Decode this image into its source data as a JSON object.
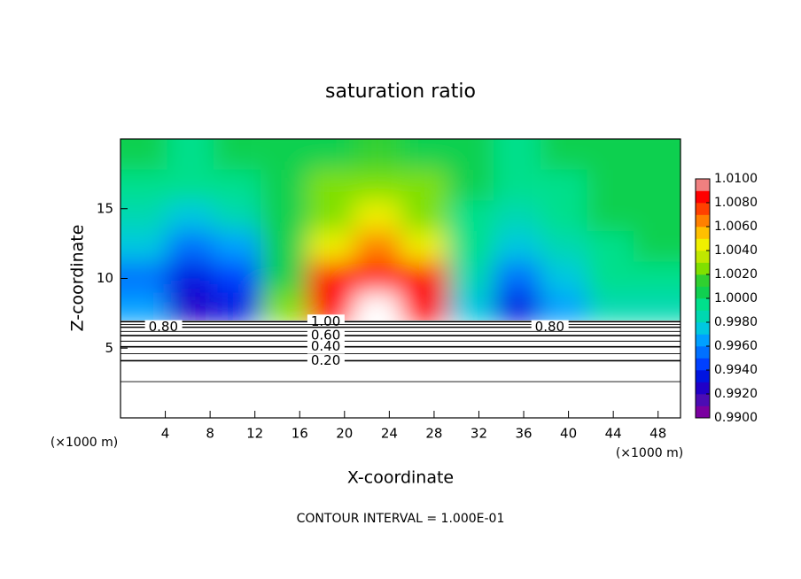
{
  "chart_data": {
    "type": "contour",
    "title": "saturation ratio",
    "x_label": "X-coordinate",
    "y_label": "Z-coordinate",
    "x_unit": "(×1000 m)",
    "y_unit": "(×1000 m)",
    "footnote": "CONTOUR INTERVAL = 1.000E-01",
    "xlim": [
      0,
      50
    ],
    "ylim": [
      0,
      20
    ],
    "xticks": [
      4,
      8,
      12,
      16,
      20,
      24,
      28,
      32,
      36,
      40,
      44,
      48
    ],
    "yticks": [
      5,
      10,
      15
    ],
    "field": {
      "x": [
        2.08,
        6.25,
        10.4,
        14.6,
        18.75,
        22.9,
        27.1,
        31.25,
        35.4,
        39.6,
        43.75,
        47.9
      ],
      "z": [
        18.9,
        16.7,
        14.5,
        12.3,
        10.1,
        7.9
      ],
      "values": [
        [
          1.0,
          0.9995,
          1.0,
          1.0005,
          1.001,
          1.0015,
          1.001,
          1.0,
          0.9995,
          1.0,
          1.0,
          1.0
        ],
        [
          0.999,
          0.999,
          0.9995,
          1.001,
          1.002,
          1.003,
          1.002,
          1.0,
          0.999,
          0.9995,
          1.0,
          1.0
        ],
        [
          0.998,
          0.997,
          0.998,
          1.001,
          1.003,
          1.004,
          1.003,
          0.9995,
          0.998,
          0.999,
          1.0,
          1.0
        ],
        [
          0.997,
          0.995,
          0.996,
          1.001,
          1.005,
          1.007,
          1.005,
          0.999,
          0.997,
          0.998,
          0.9995,
          1.0
        ],
        [
          0.995,
          0.993,
          0.994,
          1.001,
          1.008,
          1.009,
          1.008,
          0.998,
          0.995,
          0.997,
          0.999,
          0.999
        ],
        [
          0.996,
          0.992,
          0.993,
          1.002,
          1.009,
          1.012,
          1.009,
          0.997,
          0.993,
          0.996,
          0.998,
          0.998
        ]
      ]
    },
    "contours": [
      {
        "value": 1,
        "label": "1.00",
        "z": 6.9,
        "label_x": [
          17
        ]
      },
      {
        "value": 0.9,
        "z": 6.7
      },
      {
        "value": 0.8,
        "label": "0.80",
        "z": 6.5,
        "label_x": [
          2.5,
          37
        ]
      },
      {
        "value": 0.7,
        "z": 6.2
      },
      {
        "value": 0.6,
        "label": "0.60",
        "z": 5.9,
        "label_x": [
          17
        ]
      },
      {
        "value": 0.5,
        "z": 5.5
      },
      {
        "value": 0.4,
        "label": "0.40",
        "z": 5.1,
        "label_x": [
          17
        ]
      },
      {
        "value": 0.3,
        "z": 4.6
      },
      {
        "value": 0.2,
        "label": "0.20",
        "z": 4.1,
        "label_x": [
          17
        ]
      },
      {
        "value": 0.1,
        "z": 2.6
      }
    ],
    "colorbar": {
      "lim": [
        0.99,
        1.01
      ],
      "ticks": [
        {
          "value": 0.99,
          "label": "0.9900"
        },
        {
          "value": 0.992,
          "label": "0.9920"
        },
        {
          "value": 0.994,
          "label": "0.9940"
        },
        {
          "value": 0.996,
          "label": "0.9960"
        },
        {
          "value": 0.998,
          "label": "0.9980"
        },
        {
          "value": 1,
          "label": "1.0000"
        },
        {
          "value": 1.002,
          "label": "1.0020"
        },
        {
          "value": 1.004,
          "label": "1.0040"
        },
        {
          "value": 1.006,
          "label": "1.0060"
        },
        {
          "value": 1.008,
          "label": "1.0080"
        },
        {
          "value": 1.01,
          "label": "1.0100"
        }
      ],
      "colors": [
        "#7a00a0",
        "#4b0cb4",
        "#2000c8",
        "#0014e0",
        "#0040ff",
        "#0070ff",
        "#00a0ff",
        "#00c8e0",
        "#00d8b0",
        "#00e08c",
        "#10d050",
        "#30d030",
        "#80e000",
        "#c0e800",
        "#f0f000",
        "#ffc000",
        "#ff8000",
        "#ff4000",
        "#ff0000",
        "#f08080"
      ]
    }
  }
}
